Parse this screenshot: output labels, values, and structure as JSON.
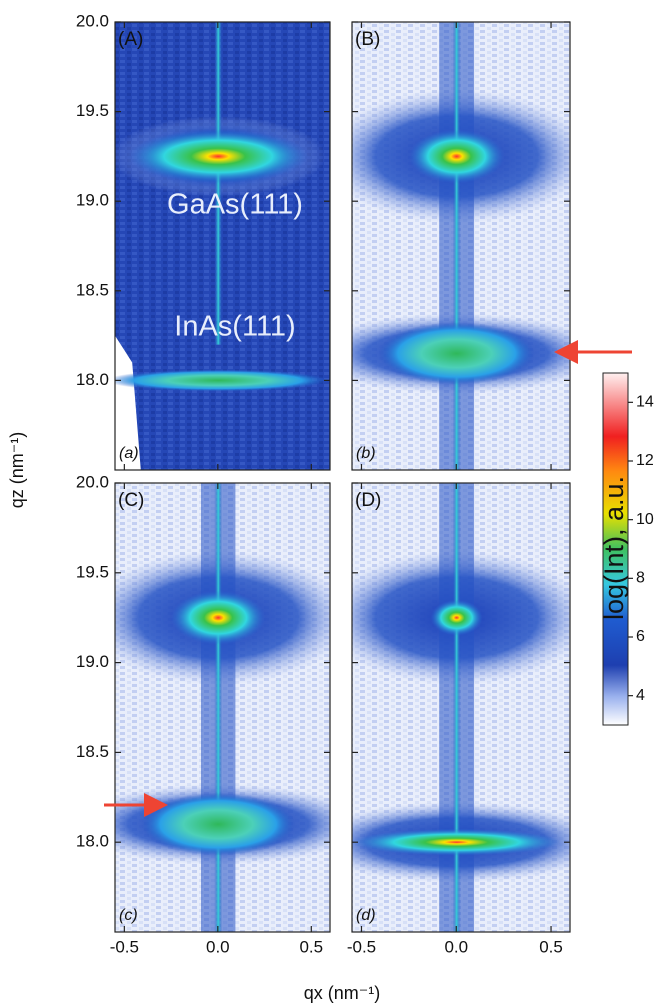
{
  "chart_data": {
    "type": "heatmap-grid",
    "xlabel": "qx (nm⁻¹)",
    "ylabel": "qz (nm⁻¹)",
    "xlim": [
      -0.55,
      0.6
    ],
    "ylim": [
      17.5,
      20.0
    ],
    "xticks": [
      -0.5,
      {
        "value": 0,
        "label": "0.0"
      },
      0.5
    ],
    "yticks": [
      {
        "value": 18,
        "label": "18.0"
      },
      18.5,
      {
        "value": 19,
        "label": "19.0"
      },
      19.5,
      {
        "value": 20,
        "label": "20.0"
      }
    ],
    "panels": [
      {
        "label": "(A)",
        "sublabel": "(a)"
      },
      {
        "label": "(B)",
        "sublabel": "(b)"
      },
      {
        "label": "(C)",
        "sublabel": "(c)"
      },
      {
        "label": "(D)",
        "sublabel": "(d)"
      }
    ],
    "annotations": [
      "GaAs(111)",
      "InAs(111)"
    ],
    "colorbar": {
      "label": "log(Int), a.u.",
      "clim": [
        3,
        15
      ],
      "ticks": [
        4,
        6,
        8,
        10,
        12,
        14
      ]
    }
  }
}
